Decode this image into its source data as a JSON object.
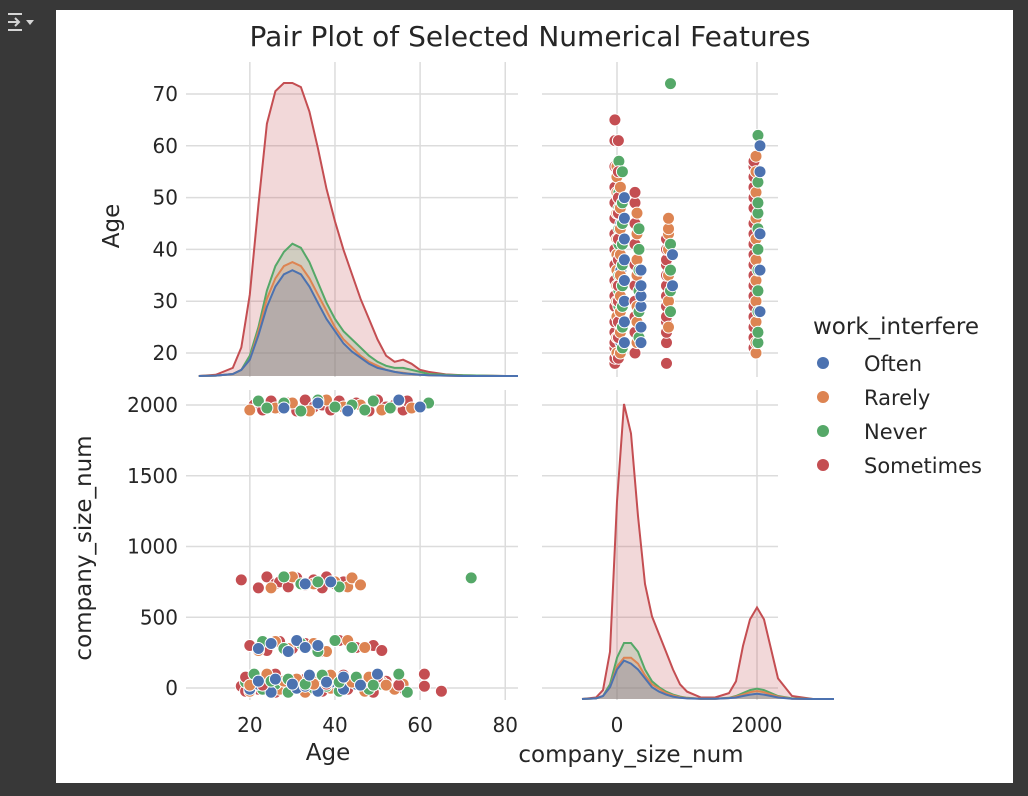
{
  "toolbar": {
    "icon": "output-collapse-icon"
  },
  "chart_data": {
    "type": "scatter",
    "title": "Pair Plot of Selected Numerical Features",
    "variables": [
      "Age",
      "company_size_num"
    ],
    "hue": "work_interfere",
    "legend": {
      "title": "work_interfere",
      "placement": "right",
      "entries": [
        {
          "name": "Often",
          "color": "#4c72b0"
        },
        {
          "name": "Rarely",
          "color": "#dd8452"
        },
        {
          "name": "Never",
          "color": "#55a868"
        },
        {
          "name": "Sometimes",
          "color": "#c44e52"
        }
      ]
    },
    "grid": true,
    "axes": {
      "Age": {
        "label": "Age",
        "range": [
          5,
          83
        ],
        "ticks": [
          20,
          40,
          60,
          80
        ],
        "density_panel_ticks": [
          20,
          30,
          40,
          50,
          60,
          70
        ]
      },
      "company_size_num": {
        "label": "company_size_num",
        "range": [
          -100,
          2120
        ],
        "ticks": [
          0,
          500,
          1000,
          1500,
          2000
        ],
        "x_range": [
          -550,
          3200
        ],
        "x_ticks": [
          0,
          2000
        ]
      }
    },
    "kde_age": {
      "x": [
        8,
        12,
        16,
        18,
        20,
        22,
        24,
        26,
        28,
        30,
        32,
        34,
        36,
        38,
        40,
        42,
        44,
        46,
        48,
        50,
        52,
        54,
        56,
        58,
        60,
        62,
        66,
        70,
        75,
        80,
        83
      ],
      "series": [
        {
          "name": "Sometimes",
          "values": [
            0,
            0.3,
            2,
            7,
            20,
            42,
            62,
            70,
            72,
            72,
            71,
            65,
            56,
            46,
            38,
            31,
            25,
            19,
            14,
            9,
            5,
            3.5,
            4,
            3,
            1.5,
            1,
            0.4,
            0.2,
            0.1,
            0,
            0
          ]
        },
        {
          "name": "Never",
          "values": [
            0,
            0.1,
            0.5,
            1.5,
            5,
            12,
            21,
            27,
            30.5,
            32.5,
            31.5,
            28,
            23,
            18,
            14,
            11,
            9,
            7,
            5,
            3.5,
            2.5,
            2,
            2,
            1.5,
            1,
            0.5,
            0.3,
            0.2,
            0.1,
            0,
            0
          ]
        },
        {
          "name": "Rarely",
          "values": [
            0,
            0.1,
            0.5,
            1.5,
            4,
            11,
            19,
            24,
            27,
            28,
            27,
            24,
            20,
            16,
            12,
            9,
            7,
            5,
            3.5,
            2.5,
            1.5,
            1,
            0.8,
            0.5,
            0.3,
            0.2,
            0.1,
            0,
            0,
            0,
            0
          ]
        },
        {
          "name": "Often",
          "values": [
            0,
            0.1,
            0.5,
            1.5,
            4,
            10,
            17,
            22,
            25,
            26,
            25,
            22,
            18,
            14,
            11,
            8,
            6,
            4.5,
            3,
            2,
            1.5,
            1,
            0.7,
            0.5,
            0.3,
            0.2,
            0.1,
            0,
            0,
            0,
            0
          ]
        }
      ]
    },
    "kde_company_size": {
      "x": [
        -500,
        -300,
        -200,
        -100,
        0,
        100,
        200,
        300,
        400,
        500,
        600,
        700,
        800,
        900,
        1000,
        1200,
        1400,
        1600,
        1700,
        1800,
        1900,
        2000,
        2100,
        2200,
        2300,
        2500,
        2800,
        3100
      ],
      "series": [
        {
          "name": "Sometimes",
          "values": [
            0,
            0.5,
            3,
            16,
            67,
            100,
            90,
            62,
            39,
            28,
            22,
            16,
            10,
            5,
            2.5,
            0.5,
            0.5,
            2,
            6,
            18,
            27,
            31,
            27,
            17,
            7,
            1,
            0,
            0
          ]
        },
        {
          "name": "Never",
          "values": [
            0,
            0.2,
            1,
            5,
            14,
            19,
            19,
            16,
            10,
            6,
            4,
            2.5,
            1.5,
            0.8,
            0.4,
            0.1,
            0.1,
            0.4,
            1,
            2,
            3,
            3.5,
            3,
            2,
            1,
            0.2,
            0,
            0
          ]
        },
        {
          "name": "Rarely",
          "values": [
            0,
            0.2,
            1,
            4,
            11,
            14,
            14,
            12,
            8,
            5,
            3.5,
            2,
            1.2,
            0.6,
            0.3,
            0.1,
            0.1,
            0.3,
            0.8,
            1.5,
            2.3,
            2.7,
            2.3,
            1.5,
            0.8,
            0.1,
            0,
            0
          ]
        },
        {
          "name": "Often",
          "values": [
            0,
            0.2,
            1,
            4,
            10,
            13,
            12,
            10,
            7,
            4,
            2.5,
            1.5,
            0.8,
            0.4,
            0.2,
            0.1,
            0.1,
            0.3,
            0.5,
            1,
            1.5,
            1.8,
            1.5,
            1,
            0.5,
            0.1,
            0,
            0
          ]
        }
      ]
    },
    "points": [
      {
        "company_size_num": 13,
        "group": "Sometimes",
        "ages": [
          18,
          19,
          21,
          22,
          24,
          26,
          29,
          31,
          34,
          37,
          40,
          43,
          46,
          49,
          52,
          56,
          61,
          65
        ]
      },
      {
        "company_size_num": 13,
        "group": "Rarely",
        "ages": [
          20,
          23,
          27,
          30,
          33,
          36,
          39,
          42,
          47,
          51,
          54,
          56
        ]
      },
      {
        "company_size_num": 13,
        "group": "Never",
        "ages": [
          19,
          23,
          26,
          29,
          32,
          35,
          38,
          41,
          44,
          48,
          51,
          57
        ]
      },
      {
        "company_size_num": 13,
        "group": "Often",
        "ages": [
          20,
          22,
          25,
          28,
          31,
          33,
          36,
          39,
          42,
          45
        ]
      },
      {
        "company_size_num": 63,
        "group": "Sometimes",
        "ages": [
          19,
          23,
          26,
          30,
          33,
          38,
          42,
          47,
          50,
          55,
          61
        ]
      },
      {
        "company_size_num": 63,
        "group": "Rarely",
        "ages": [
          20,
          24,
          28,
          31,
          35,
          39,
          44,
          48,
          52
        ]
      },
      {
        "company_size_num": 63,
        "group": "Never",
        "ages": [
          21,
          25,
          29,
          33,
          37,
          41,
          45,
          49,
          55
        ]
      },
      {
        "company_size_num": 63,
        "group": "Often",
        "ages": [
          22,
          26,
          30,
          34,
          38,
          42,
          46,
          50
        ]
      },
      {
        "company_size_num": 300,
        "group": "Sometimes",
        "ages": [
          20,
          24,
          27,
          30,
          33,
          37,
          41,
          45,
          49,
          51
        ]
      },
      {
        "company_size_num": 300,
        "group": "Rarely",
        "ages": [
          22,
          26,
          29,
          35,
          38,
          43,
          47
        ]
      },
      {
        "company_size_num": 300,
        "group": "Never",
        "ages": [
          23,
          28,
          32,
          36,
          40,
          44
        ]
      },
      {
        "company_size_num": 300,
        "group": "Often",
        "ages": [
          22,
          25,
          29,
          31,
          33,
          36
        ]
      },
      {
        "company_size_num": 750,
        "group": "Sometimes",
        "ages": [
          18,
          22,
          24,
          26,
          27,
          29,
          31,
          33,
          35,
          37,
          38,
          40,
          42
        ]
      },
      {
        "company_size_num": 750,
        "group": "Rarely",
        "ages": [
          25,
          30,
          35,
          40,
          43,
          44,
          46
        ]
      },
      {
        "company_size_num": 750,
        "group": "Never",
        "ages": [
          28,
          32,
          36,
          41,
          72
        ]
      },
      {
        "company_size_num": 750,
        "group": "Often",
        "ages": [
          33,
          39
        ]
      },
      {
        "company_size_num": 2000,
        "group": "Sometimes",
        "ages": [
          21,
          23,
          25,
          27,
          29,
          31,
          33,
          35,
          37,
          39,
          41,
          43,
          45,
          48,
          50,
          52,
          54,
          56,
          57
        ]
      },
      {
        "company_size_num": 2000,
        "group": "Rarely",
        "ages": [
          20,
          22,
          26,
          30,
          34,
          38,
          42,
          46,
          51,
          55,
          58
        ]
      },
      {
        "company_size_num": 2000,
        "group": "Never",
        "ages": [
          22,
          24,
          28,
          32,
          36,
          40,
          44,
          47,
          49,
          53,
          62
        ]
      },
      {
        "company_size_num": 2000,
        "group": "Often",
        "ages": [
          28,
          36,
          43,
          55,
          60
        ]
      }
    ]
  }
}
